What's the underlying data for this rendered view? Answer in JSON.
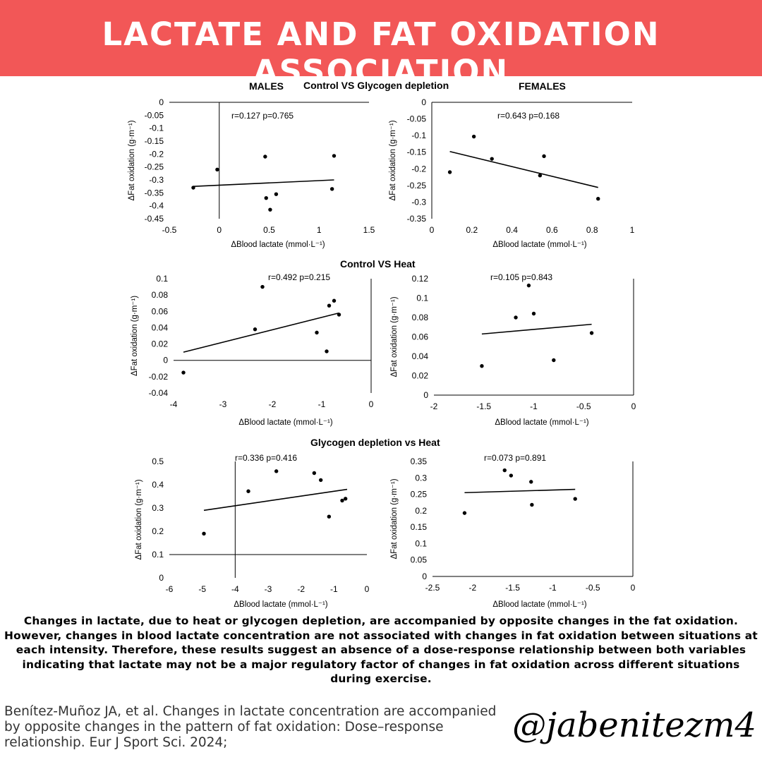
{
  "header": {
    "title": "LACTATE AND FAT OXIDATION ASSOCIATION",
    "bg_color": "#f25757",
    "text_color": "#ffffff"
  },
  "sections": {
    "s1": "Control VS Glycogen depletion",
    "s2": "Control VS Heat",
    "s3": "Glycogen depletion vs Heat"
  },
  "groups": {
    "males": "MALES",
    "females": "FEMALES"
  },
  "chart_data": [
    {
      "type": "scatter",
      "id": "c1",
      "group": "MALES",
      "section": "Control VS Glycogen depletion",
      "xlabel": "ΔBlood lactate (mmol·L⁻¹)",
      "ylabel": "ΔFat oxidation (g·m⁻¹)",
      "annotation": "r=0.127 p=0.765",
      "xlim": [
        -0.5,
        1.5
      ],
      "ylim": [
        -0.45,
        0
      ],
      "xticks": [
        -0.5,
        0,
        0.5,
        1,
        1.5
      ],
      "yticks": [
        0,
        -0.05,
        -0.1,
        -0.15,
        -0.2,
        -0.25,
        -0.3,
        -0.35,
        -0.4,
        -0.45
      ],
      "xtick_labels": [
        "-0.5",
        "0",
        "0.5",
        "1",
        "1.5"
      ],
      "ytick_labels": [
        "0",
        "-0.05",
        "-0.1",
        "-0.15",
        "-0.2",
        "-0.25",
        "-0.3",
        "-0.35",
        "-0.4",
        "-0.45"
      ],
      "x_axis_at_y": 0,
      "y_axis_at_x": 0,
      "points": [
        [
          -0.26,
          -0.33
        ],
        [
          -0.02,
          -0.26
        ],
        [
          0.46,
          -0.21
        ],
        [
          0.47,
          -0.37
        ],
        [
          0.51,
          -0.415
        ],
        [
          0.57,
          -0.355
        ],
        [
          1.13,
          -0.335
        ],
        [
          1.15,
          -0.207
        ]
      ],
      "trend": [
        [
          -0.26,
          -0.325
        ],
        [
          1.15,
          -0.3
        ]
      ]
    },
    {
      "type": "scatter",
      "id": "c2",
      "group": "FEMALES",
      "section": "Control VS Glycogen depletion",
      "xlabel": "ΔBlood lactate (mmol·L⁻¹)",
      "ylabel": "ΔFat oxidation (g·m⁻¹)",
      "annotation": "r=0.643 p=0.168",
      "xlim": [
        0,
        1
      ],
      "ylim": [
        -0.35,
        0
      ],
      "xticks": [
        0,
        0.2,
        0.4,
        0.6,
        0.8,
        1
      ],
      "yticks": [
        0,
        -0.05,
        -0.1,
        -0.15,
        -0.2,
        -0.25,
        -0.3,
        -0.35
      ],
      "xtick_labels": [
        "0",
        "0.2",
        "0.4",
        "0.6",
        "0.8",
        "1"
      ],
      "ytick_labels": [
        "0",
        "-0.05",
        "-0.1",
        "-0.15",
        "-0.2",
        "-0.25",
        "-0.3",
        "-0.35"
      ],
      "x_axis_at_y": 0,
      "y_axis_at_x": 0,
      "points": [
        [
          0.09,
          -0.21
        ],
        [
          0.21,
          -0.103
        ],
        [
          0.3,
          -0.17
        ],
        [
          0.54,
          -0.22
        ],
        [
          0.56,
          -0.162
        ],
        [
          0.83,
          -0.29
        ]
      ],
      "trend": [
        [
          0.09,
          -0.148
        ],
        [
          0.83,
          -0.256
        ]
      ]
    },
    {
      "type": "scatter",
      "id": "c3",
      "group": "MALES",
      "section": "Control VS Heat",
      "xlabel": "ΔBlood lactate (mmol·L⁻¹)",
      "ylabel": "ΔFat oxidation (g·m⁻¹)",
      "annotation": "r=0.492 p=0.215",
      "xlim": [
        -4,
        0
      ],
      "ylim": [
        -0.04,
        0.1
      ],
      "xticks": [
        -4,
        -3,
        -2,
        -1,
        0
      ],
      "yticks": [
        0.1,
        0.08,
        0.06,
        0.04,
        0.02,
        0,
        -0.02,
        -0.04
      ],
      "xtick_labels": [
        "-4",
        "-3",
        "-2",
        "-1",
        "0"
      ],
      "ytick_labels": [
        "0.1",
        "0.08",
        "0.06",
        "0.04",
        "0.02",
        "0",
        "-0.02",
        "-0.04"
      ],
      "x_axis_at_y": 0,
      "y_axis_at_x": 0,
      "points": [
        [
          -3.8,
          -0.015
        ],
        [
          -2.35,
          0.038
        ],
        [
          -2.2,
          0.09
        ],
        [
          -1.1,
          0.034
        ],
        [
          -0.9,
          0.011
        ],
        [
          -0.85,
          0.067
        ],
        [
          -0.75,
          0.073
        ],
        [
          -0.65,
          0.056
        ]
      ],
      "trend": [
        [
          -3.8,
          0.01
        ],
        [
          -0.65,
          0.058
        ]
      ]
    },
    {
      "type": "scatter",
      "id": "c4",
      "group": "FEMALES",
      "section": "Control VS Heat",
      "xlabel": "ΔBlood lactate (mmol·L⁻¹)",
      "ylabel": "ΔFat oxidation (g·m⁻¹)",
      "annotation": "r=0.105 p=0.843",
      "xlim": [
        -2,
        0
      ],
      "ylim": [
        0,
        0.12
      ],
      "xticks": [
        -2,
        -1.5,
        -1,
        -0.5,
        0
      ],
      "yticks": [
        0.12,
        0.1,
        0.08,
        0.06,
        0.04,
        0.02,
        0
      ],
      "xtick_labels": [
        "-2",
        "-1.5",
        "-1",
        "-0.5",
        "0"
      ],
      "ytick_labels": [
        "0.12",
        "0.1",
        "0.08",
        "0.06",
        "0.04",
        "0.02",
        "0"
      ],
      "x_axis_at_y": 0,
      "y_axis_at_x": 0,
      "points": [
        [
          -1.52,
          0.03
        ],
        [
          -1.18,
          0.08
        ],
        [
          -1.05,
          0.113
        ],
        [
          -1.0,
          0.084
        ],
        [
          -0.8,
          0.036
        ],
        [
          -0.42,
          0.064
        ]
      ],
      "trend": [
        [
          -1.52,
          0.063
        ],
        [
          -0.42,
          0.073
        ]
      ]
    },
    {
      "type": "scatter",
      "id": "c5",
      "group": "MALES",
      "section": "Glycogen depletion vs Heat",
      "xlabel": "ΔBlood lactate (mmol·L⁻¹)",
      "ylabel": "ΔFat oxidation (g·m⁻¹)",
      "annotation": "r=0.336 p=0.416",
      "xlim": [
        -6,
        0
      ],
      "ylim": [
        0,
        0.5
      ],
      "xticks": [
        -6,
        -5,
        -4,
        -3,
        -2,
        -1,
        0
      ],
      "yticks": [
        0.5,
        0.4,
        0.3,
        0.2,
        0.1,
        0
      ],
      "xtick_labels": [
        "-6",
        "-5",
        "-4",
        "-3",
        "-2",
        "-1",
        "0"
      ],
      "ytick_labels": [
        "0.5",
        "0.4",
        "0.3",
        "0.2",
        "0.1",
        "0"
      ],
      "x_axis_at_y": 0.1,
      "y_axis_at_x": -4,
      "points": [
        [
          -4.95,
          0.19
        ],
        [
          -3.6,
          0.372
        ],
        [
          -2.75,
          0.458
        ],
        [
          -1.6,
          0.45
        ],
        [
          -1.4,
          0.42
        ],
        [
          -1.15,
          0.263
        ],
        [
          -0.75,
          0.332
        ],
        [
          -0.65,
          0.34
        ]
      ],
      "trend": [
        [
          -4.95,
          0.29
        ],
        [
          -0.6,
          0.38
        ]
      ]
    },
    {
      "type": "scatter",
      "id": "c6",
      "group": "FEMALES",
      "section": "Glycogen depletion vs Heat",
      "xlabel": "ΔBlood lactate (mmol·L⁻¹)",
      "ylabel": "ΔFat oxidation (g·m⁻¹)",
      "annotation": "r=0.073 p=0.891",
      "xlim": [
        -2.5,
        0
      ],
      "ylim": [
        0,
        0.35
      ],
      "xticks": [
        -2.5,
        -2,
        -1.5,
        -1,
        -0.5,
        0
      ],
      "yticks": [
        0.35,
        0.3,
        0.25,
        0.2,
        0.15,
        0.1,
        0.05,
        0
      ],
      "xtick_labels": [
        "-2.5",
        "-2",
        "-1.5",
        "-1",
        "-0.5",
        "0"
      ],
      "ytick_labels": [
        "0.35",
        "0.3",
        "0.25",
        "0.2",
        "0.15",
        "0.1",
        "0.05",
        "0"
      ],
      "x_axis_at_y": 0,
      "y_axis_at_x": 0,
      "points": [
        [
          -2.1,
          0.193
        ],
        [
          -1.6,
          0.323
        ],
        [
          -1.52,
          0.307
        ],
        [
          -1.27,
          0.288
        ],
        [
          -1.26,
          0.218
        ],
        [
          -0.72,
          0.236
        ]
      ],
      "trend": [
        [
          -2.1,
          0.255
        ],
        [
          -0.72,
          0.265
        ]
      ]
    }
  ],
  "conclusion": "Changes in lactate, due to heat or glycogen depletion, are accompanied by opposite changes in the fat oxidation. However, changes in blood lactate concentration are not associated with changes in fat oxidation between situations at each intensity. Therefore, these results suggest an absence of a dose-response relationship between both variables indicating that lactate may not be a major regulatory factor of changes in fat oxidation across different situations during exercise.",
  "citation": "Benítez-Muñoz JA, et al. Changes in lactate concentration are accompanied by opposite changes in the pattern of fat oxidation: Dose–response relationship. Eur J Sport Sci. 2024;",
  "handle": "@jabenitezm4"
}
